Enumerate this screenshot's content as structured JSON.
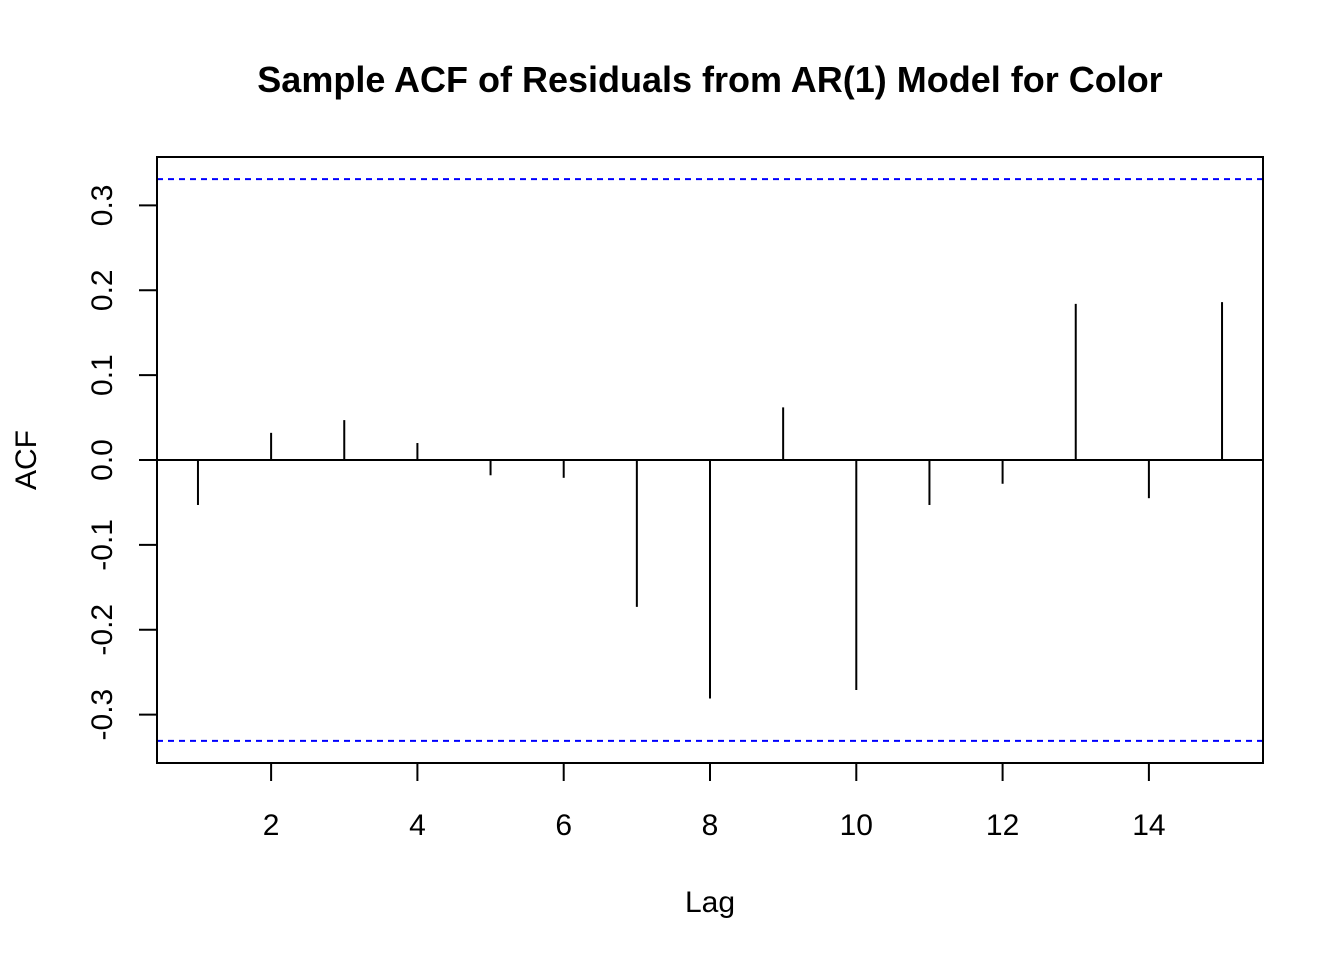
{
  "chart_data": {
    "type": "bar",
    "title": "Sample ACF of Residuals from AR(1) Model for Color",
    "xlabel": "Lag",
    "ylabel": "ACF",
    "x": [
      1,
      2,
      3,
      4,
      5,
      6,
      7,
      8,
      9,
      10,
      11,
      12,
      13,
      14,
      15
    ],
    "values": [
      -0.053,
      0.032,
      0.047,
      0.02,
      -0.018,
      -0.021,
      -0.173,
      -0.281,
      0.062,
      -0.271,
      -0.053,
      -0.028,
      0.184,
      -0.045,
      0.186
    ],
    "xlim": [
      0.44,
      15.56
    ],
    "ylim": [
      -0.357,
      0.357
    ],
    "x_ticks": [
      2,
      4,
      6,
      8,
      10,
      12,
      14
    ],
    "x_tick_labels": [
      "2",
      "4",
      "6",
      "8",
      "10",
      "12",
      "14"
    ],
    "y_ticks": [
      -0.3,
      -0.2,
      -0.1,
      0.0,
      0.1,
      0.2,
      0.3
    ],
    "y_tick_labels": [
      "-0.3",
      "-0.2",
      "-0.1",
      "0.0",
      "0.1",
      "0.2",
      "0.3"
    ],
    "confidence_bounds": [
      0.331,
      -0.331
    ],
    "zero_line": 0,
    "grid": false,
    "legend": "none",
    "colors": {
      "bars": "#000000",
      "bounds": "#0000ff",
      "frame": "#000000",
      "background": "#ffffff"
    }
  }
}
